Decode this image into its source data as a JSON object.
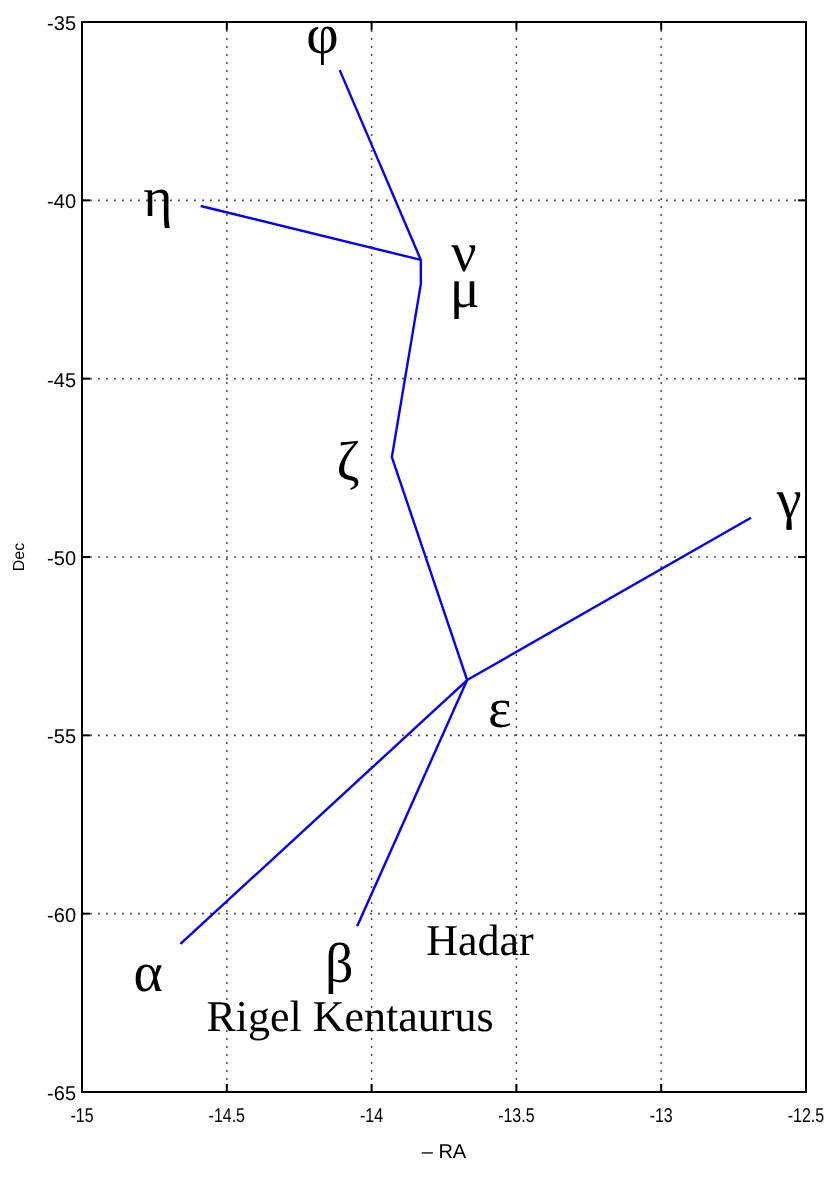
{
  "chart_data": {
    "type": "line",
    "xlabel": "– RA",
    "ylabel": "Dec",
    "xlim": [
      -15,
      -12.5
    ],
    "ylim": [
      -65,
      -35
    ],
    "xticks": [
      -15,
      -14.5,
      -14,
      -13.5,
      -13,
      -12.5
    ],
    "yticks": [
      -65,
      -60,
      -55,
      -50,
      -45,
      -40,
      -35
    ],
    "grid": true,
    "line_style": "solid",
    "marker": "none",
    "series": [
      {
        "color": "#0000ff",
        "x": [
          -14.11,
          -13.83,
          -13.83,
          -13.93,
          -13.67
        ],
        "values": [
          -36.35,
          -41.67,
          -42.35,
          -47.2,
          -53.45
        ]
      },
      {
        "color": "#0000ff",
        "x": [
          -14.59,
          -13.83
        ],
        "values": [
          -40.16,
          -41.67
        ]
      },
      {
        "color": "#0000ff",
        "x": [
          -12.69,
          -13.67,
          -14.66
        ],
        "values": [
          -48.9,
          -53.45,
          -60.85
        ]
      },
      {
        "color": "#0000ff",
        "x": [
          -13.67,
          -14.05
        ],
        "values": [
          -53.45,
          -60.35
        ]
      }
    ],
    "annotations": [
      {
        "text": "φ",
        "x": -14.11,
        "y": -36.35
      },
      {
        "text": "η",
        "x": -14.59,
        "y": -40.16
      },
      {
        "text": "ν",
        "x": -13.83,
        "y": -41.67
      },
      {
        "text": "μ",
        "x": -13.83,
        "y": -42.35
      },
      {
        "text": "ζ",
        "x": -13.93,
        "y": -47.2
      },
      {
        "text": "γ",
        "x": -12.69,
        "y": -48.9
      },
      {
        "text": "ε",
        "x": -13.67,
        "y": -53.45
      },
      {
        "text": "α",
        "x": -14.66,
        "y": -60.85
      },
      {
        "text": "β",
        "x": -14.05,
        "y": -60.35
      },
      "Hadar",
      "Rigel Kentaurus"
    ]
  }
}
